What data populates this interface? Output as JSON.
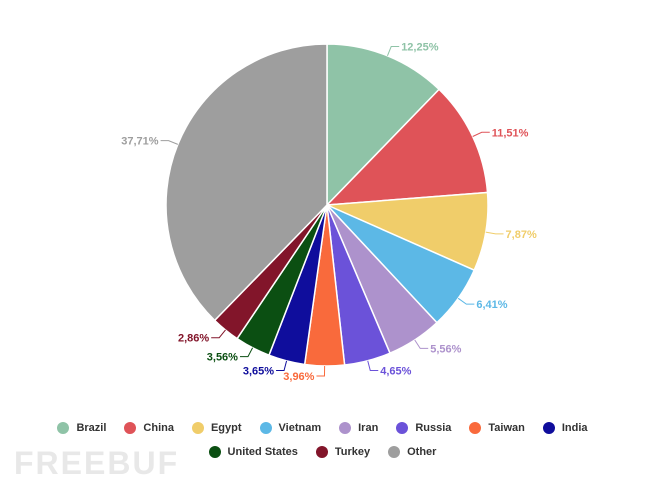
{
  "chart_data": {
    "type": "pie",
    "title": "",
    "slices": [
      {
        "label": "Brazil",
        "value": 12.25,
        "display": "12,25%",
        "color": "#8fc3a7"
      },
      {
        "label": "China",
        "value": 11.51,
        "display": "11,51%",
        "color": "#df5358"
      },
      {
        "label": "Egypt",
        "value": 7.87,
        "display": "7,87%",
        "color": "#f0cd6a"
      },
      {
        "label": "Vietnam",
        "value": 6.41,
        "display": "6,41%",
        "color": "#5cb8e6"
      },
      {
        "label": "Iran",
        "value": 5.56,
        "display": "5,56%",
        "color": "#ad92cc"
      },
      {
        "label": "Russia",
        "value": 4.65,
        "display": "4,65%",
        "color": "#6b52d9"
      },
      {
        "label": "Taiwan",
        "value": 3.96,
        "display": "3,96%",
        "color": "#f96a3c"
      },
      {
        "label": "India",
        "value": 3.65,
        "display": "3,65%",
        "color": "#0f0d9c"
      },
      {
        "label": "United States",
        "value": 3.56,
        "display": "3,56%",
        "color": "#0b4f12"
      },
      {
        "label": "Turkey",
        "value": 2.86,
        "display": "2,86%",
        "color": "#82152a"
      },
      {
        "label": "Other",
        "value": 37.71,
        "display": "37,71%",
        "color": "#9e9e9e"
      }
    ],
    "legend_placement": "bottom"
  },
  "watermark": "FREEBUF"
}
